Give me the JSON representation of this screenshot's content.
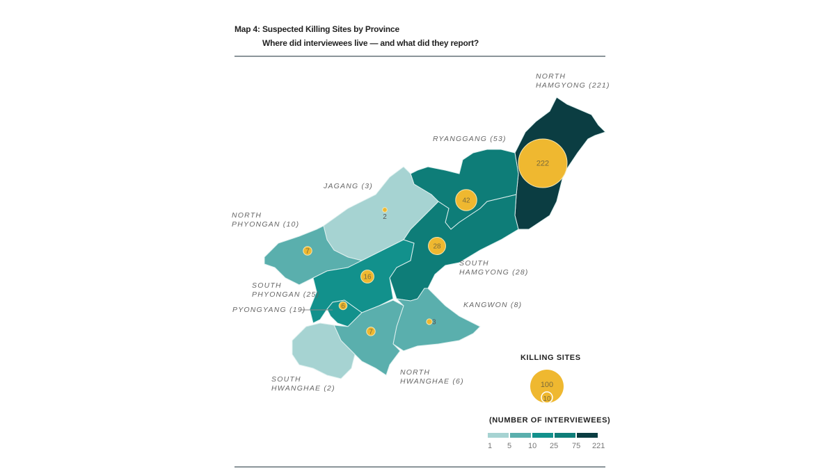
{
  "title": "Map 4: Suspected Killing Sites by Province",
  "subtitle": "Where did interviewees live — and what did they report?",
  "provinces": [
    {
      "id": "north-hamgyong",
      "label_1": "NORTH",
      "label_2": "HAMGYONG (221)",
      "interviewees": 221,
      "killing_sites": 222,
      "color": "#0b3d42"
    },
    {
      "id": "ryanggang",
      "label_1": "RYANGGANG (53)",
      "interviewees": 53,
      "killing_sites": 42,
      "color": "#0e7d78"
    },
    {
      "id": "south-hamgyong",
      "label_1": "SOUTH",
      "label_2": "HAMGYONG (28)",
      "interviewees": 28,
      "killing_sites": 28,
      "color": "#0e7d78"
    },
    {
      "id": "jagang",
      "label_1": "JAGANG (3)",
      "interviewees": 3,
      "killing_sites": 2,
      "color": "#a6d3d2"
    },
    {
      "id": "north-phyongan",
      "label_1": "NORTH",
      "label_2": "PHYONGAN (10)",
      "interviewees": 10,
      "killing_sites": 7,
      "color": "#5aafad"
    },
    {
      "id": "south-phyongan",
      "label_1": "SOUTH",
      "label_2": "PHYONGAN (25)",
      "interviewees": 25,
      "killing_sites": 16,
      "color": "#12918c"
    },
    {
      "id": "pyongyang",
      "label_1": "PYONGYANG (19)",
      "interviewees": 19,
      "killing_sites": 6,
      "color": "#12918c"
    },
    {
      "id": "kangwon",
      "label_1": "KANGWON (8)",
      "interviewees": 8,
      "killing_sites": 3,
      "color": "#5aafad"
    },
    {
      "id": "north-hwanghae",
      "label_1": "NORTH",
      "label_2": "HWANGHAE (6)",
      "interviewees": 6,
      "killing_sites": 7,
      "color": "#5aafad"
    },
    {
      "id": "south-hwanghae",
      "label_1": "SOUTH",
      "label_2": "HWANGHAE (2)",
      "interviewees": 2,
      "killing_sites": null,
      "color": "#a6d3d2"
    }
  ],
  "bubble_color": "#efb830",
  "legend": {
    "size_title": "KILLING SITES",
    "size_values": [
      "100",
      "10"
    ],
    "color_title": "(NUMBER OF INTERVIEWEES)",
    "bins": [
      "#a6d3d2",
      "#5aafad",
      "#12918c",
      "#0e7d78",
      "#0b3d42"
    ],
    "ticks": [
      "1",
      "5",
      "10",
      "25",
      "75",
      "221"
    ]
  }
}
